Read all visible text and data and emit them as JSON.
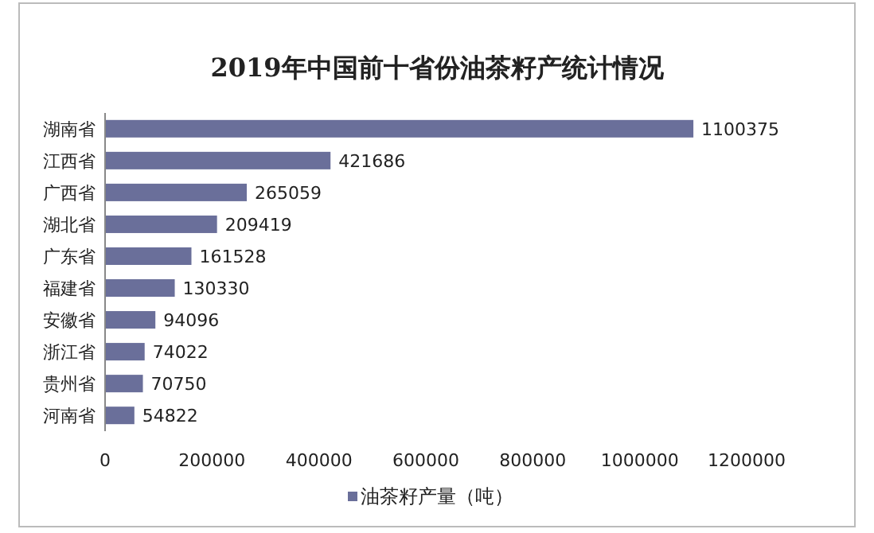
{
  "chart_data": {
    "type": "bar",
    "orientation": "horizontal",
    "title": "2019年中国前十省份油茶籽产统计情况",
    "categories": [
      "湖南省",
      "江西省",
      "广西省",
      "湖北省",
      "广东省",
      "福建省",
      "安徽省",
      "浙江省",
      "贵州省",
      "河南省"
    ],
    "series": [
      {
        "name": "油茶籽产量（吨）",
        "color": "#6a6f9a",
        "values": [
          1100375,
          421686,
          265059,
          209419,
          161528,
          130330,
          94096,
          74022,
          70750,
          54822
        ]
      }
    ],
    "xlim": [
      0,
      1200000
    ],
    "xticks": [
      0,
      200000,
      400000,
      600000,
      800000,
      1000000,
      1200000
    ],
    "data_labels": true,
    "legend": "bottom",
    "grid": false
  }
}
